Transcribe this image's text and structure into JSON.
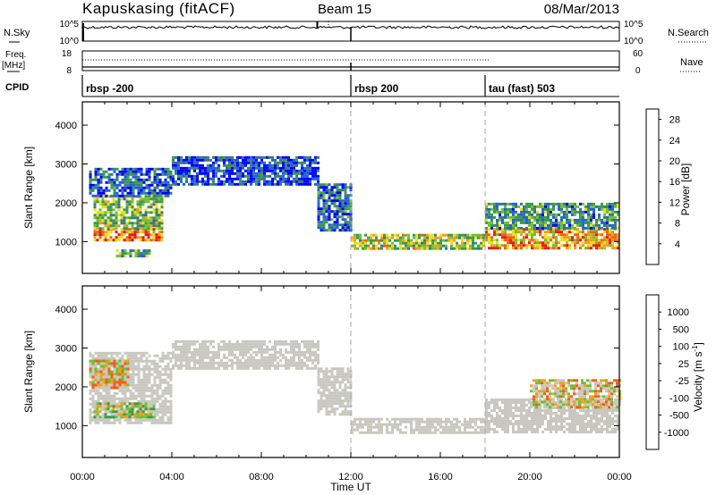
{
  "header": {
    "station": "Kapuskasing (fitACF)",
    "beam": "Beam 15",
    "date": "08/Mar/2013"
  },
  "strips": {
    "nsky_label": "N.Sky",
    "nsky_ticks": [
      "10^5",
      "10^0"
    ],
    "nsearch_label": "N.Search",
    "nsearch_ticks": [
      "10^5",
      "10^0"
    ],
    "freq_label": "Freq.",
    "freq_unit": "[MHz]",
    "freq_ticks": [
      "18",
      "8"
    ],
    "nave_label": "Nave",
    "nave_ticks": [
      "60",
      "0"
    ],
    "cpid_label": "CPID",
    "cpid_segments": [
      {
        "label": "rbsp -200",
        "start_h": 0
      },
      {
        "label": "rbsp 200",
        "start_h": 12
      },
      {
        "label": "tau (fast) 503",
        "start_h": 18
      }
    ]
  },
  "chart_data": [
    {
      "type": "heatmap",
      "name": "power",
      "ylabel": "Slant Range [km]",
      "xlabel": "Time UT",
      "x_ticks": [
        "00:00",
        "04:00",
        "08:00",
        "12:00",
        "16:00",
        "20:00",
        "00:00"
      ],
      "xlim_hours": [
        0,
        24
      ],
      "y_ticks": [
        1000,
        2000,
        3000,
        4000
      ],
      "ylim_km": [
        180,
        4600
      ],
      "colorbar_label": "Power [dB]",
      "colorbar_ticks": [
        4,
        8,
        12,
        16,
        20,
        24,
        28
      ],
      "colorbar_range": [
        0,
        30
      ],
      "colors": [
        "#0000ff",
        "#2060e0",
        "#3a7a7a",
        "#3a9a50",
        "#70c030",
        "#e8e020",
        "#f0a020",
        "#f06018",
        "#e02010",
        "#ff0000"
      ],
      "regions": [
        {
          "t": [
            0.5,
            3.6
          ],
          "r": [
            1050,
            1350
          ],
          "level": 0.72
        },
        {
          "t": [
            0.5,
            3.6
          ],
          "r": [
            1350,
            2200
          ],
          "level": 0.42
        },
        {
          "t": [
            0.3,
            4.0
          ],
          "r": [
            2200,
            2900
          ],
          "level": 0.18
        },
        {
          "t": [
            1.5,
            3.0
          ],
          "r": [
            600,
            800
          ],
          "level": 0.35
        },
        {
          "t": [
            4.0,
            10.5
          ],
          "r": [
            2500,
            3200
          ],
          "level": 0.12
        },
        {
          "t": [
            10.5,
            12.0
          ],
          "r": [
            1300,
            2500
          ],
          "level": 0.22
        },
        {
          "t": [
            12.0,
            18.0
          ],
          "r": [
            850,
            1200
          ],
          "level": 0.5
        },
        {
          "t": [
            18.0,
            24.0
          ],
          "r": [
            850,
            1350
          ],
          "level": 0.65
        },
        {
          "t": [
            18.0,
            24.0
          ],
          "r": [
            1350,
            2000
          ],
          "level": 0.3
        }
      ]
    },
    {
      "type": "heatmap",
      "name": "velocity",
      "ylabel": "Slant Range [km]",
      "xlabel": "Time UT",
      "x_ticks": [
        "00:00",
        "04:00",
        "08:00",
        "12:00",
        "16:00",
        "20:00",
        "00:00"
      ],
      "xlim_hours": [
        0,
        24
      ],
      "y_ticks": [
        1000,
        2000,
        3000,
        4000
      ],
      "ylim_km": [
        180,
        4600
      ],
      "colorbar_label": "Velocity [m s^-1]",
      "colorbar_ticks": [
        "1000",
        "500",
        "100",
        "25",
        "-25",
        "-100",
        "-500",
        "-1000"
      ],
      "colors": [
        "#ff0000",
        "#f06018",
        "#f0a020",
        "#c8c8c0",
        "#c8c8c0",
        "#70c030",
        "#3a9a50",
        "#2050c0",
        "#0000ff"
      ],
      "regions": [
        {
          "t": [
            0.3,
            4.0
          ],
          "r": [
            1100,
            2900
          ],
          "level": "ground"
        },
        {
          "t": [
            0.5,
            3.2
          ],
          "r": [
            1200,
            1600
          ],
          "level": "positive"
        },
        {
          "t": [
            0.3,
            2.0
          ],
          "r": [
            2000,
            2700
          ],
          "level": "mixed"
        },
        {
          "t": [
            4.0,
            10.5
          ],
          "r": [
            2500,
            3200
          ],
          "level": "ground"
        },
        {
          "t": [
            10.5,
            12.0
          ],
          "r": [
            1300,
            2500
          ],
          "level": "ground"
        },
        {
          "t": [
            12.0,
            18.0
          ],
          "r": [
            850,
            1200
          ],
          "level": "ground"
        },
        {
          "t": [
            18.0,
            24.0
          ],
          "r": [
            850,
            1700
          ],
          "level": "ground"
        },
        {
          "t": [
            20.0,
            24.0
          ],
          "r": [
            1500,
            2200
          ],
          "level": "mixed"
        }
      ]
    }
  ]
}
